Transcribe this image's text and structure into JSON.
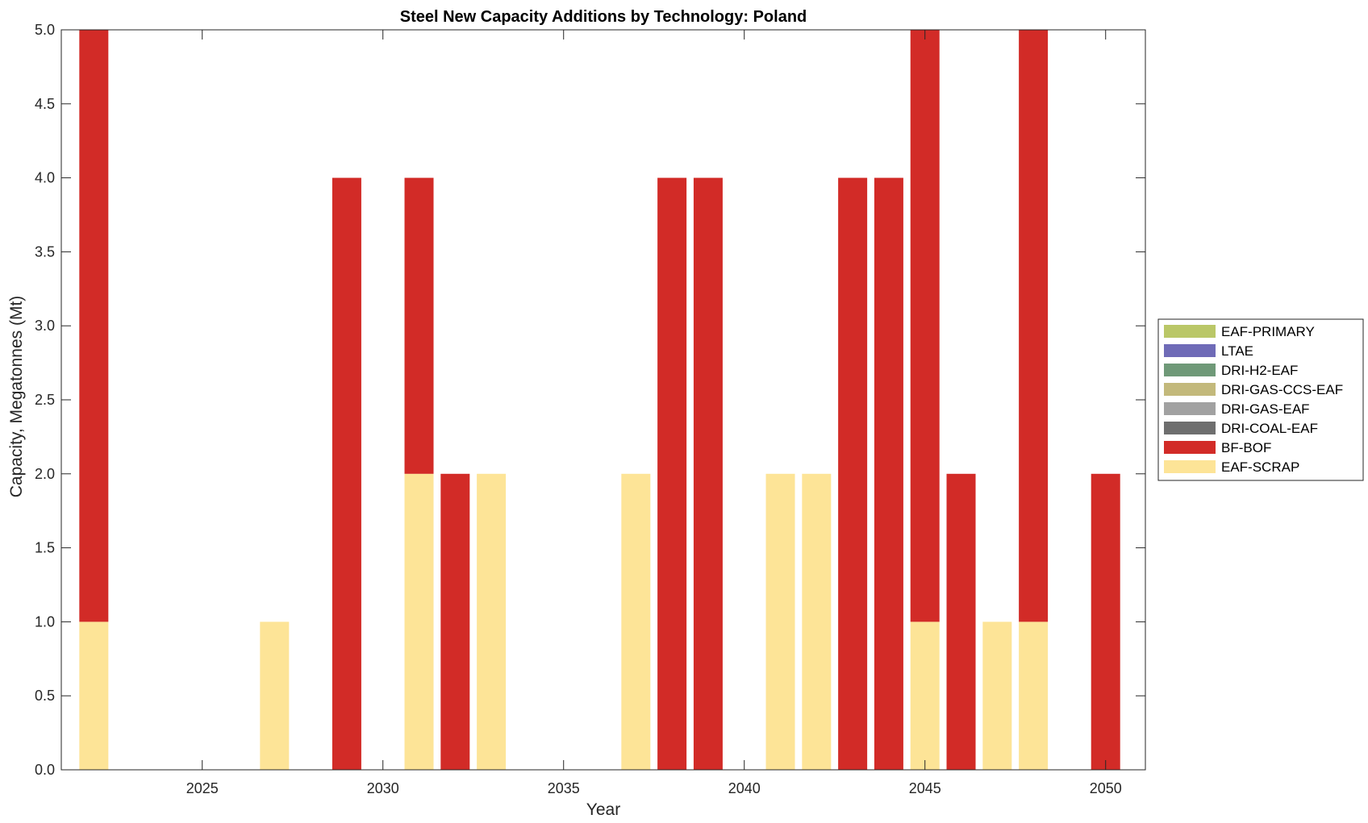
{
  "chart_data": {
    "type": "bar",
    "stacked": true,
    "title": "Steel New Capacity Additions by Technology: Poland",
    "xlabel": "Year",
    "ylabel": "Capacity, Megatonnes (Mt)",
    "xlim": [
      2021.1,
      2051.1
    ],
    "ylim": [
      0,
      5
    ],
    "xticks": [
      2025,
      2030,
      2035,
      2040,
      2045,
      2050
    ],
    "yticks": [
      "0.0",
      "0.5",
      "1.0",
      "1.5",
      "2.0",
      "2.5",
      "3.0",
      "3.5",
      "4.0",
      "4.5",
      "5.0"
    ],
    "legend_position": "outside-right",
    "categories": [
      2022,
      2023,
      2024,
      2025,
      2026,
      2027,
      2028,
      2029,
      2030,
      2031,
      2032,
      2033,
      2034,
      2035,
      2036,
      2037,
      2038,
      2039,
      2040,
      2041,
      2042,
      2043,
      2044,
      2045,
      2046,
      2047,
      2048,
      2049,
      2050
    ],
    "series": [
      {
        "name": "EAF-SCRAP",
        "color": "#FDE497",
        "values": [
          1,
          0,
          0,
          0,
          0,
          1,
          0,
          0,
          0,
          2,
          0,
          2,
          0,
          0,
          0,
          2,
          0,
          0,
          0,
          2,
          2,
          0,
          0,
          1,
          0,
          1,
          1,
          0,
          0
        ]
      },
      {
        "name": "BF-BOF",
        "color": "#D22B27",
        "values": [
          4,
          0,
          0,
          0,
          0,
          0,
          0,
          4,
          0,
          2,
          2,
          0,
          0,
          0,
          0,
          0,
          4,
          4,
          0,
          0,
          0,
          4,
          4,
          4,
          2,
          0,
          4,
          0,
          2
        ]
      },
      {
        "name": "DRI-COAL-EAF",
        "color": "#6E6E6E",
        "values": [
          0,
          0,
          0,
          0,
          0,
          0,
          0,
          0,
          0,
          0,
          0,
          0,
          0,
          0,
          0,
          0,
          0,
          0,
          0,
          0,
          0,
          0,
          0,
          0,
          0,
          0,
          0,
          0,
          0
        ]
      },
      {
        "name": "DRI-GAS-EAF",
        "color": "#A1A1A1",
        "values": [
          0,
          0,
          0,
          0,
          0,
          0,
          0,
          0,
          0,
          0,
          0,
          0,
          0,
          0,
          0,
          0,
          0,
          0,
          0,
          0,
          0,
          0,
          0,
          0,
          0,
          0,
          0,
          0,
          0
        ]
      },
      {
        "name": "DRI-GAS-CCS-EAF",
        "color": "#C3B97B",
        "values": [
          0,
          0,
          0,
          0,
          0,
          0,
          0,
          0,
          0,
          0,
          0,
          0,
          0,
          0,
          0,
          0,
          0,
          0,
          0,
          0,
          0,
          0,
          0,
          0,
          0,
          0,
          0,
          0,
          0
        ]
      },
      {
        "name": "DRI-H2-EAF",
        "color": "#6F9978",
        "values": [
          0,
          0,
          0,
          0,
          0,
          0,
          0,
          0,
          0,
          0,
          0,
          0,
          0,
          0,
          0,
          0,
          0,
          0,
          0,
          0,
          0,
          0,
          0,
          0,
          0,
          0,
          0,
          0,
          0
        ]
      },
      {
        "name": "LTAE",
        "color": "#6F6BB7",
        "values": [
          0,
          0,
          0,
          0,
          0,
          0,
          0,
          0,
          0,
          0,
          0,
          0,
          0,
          0,
          0,
          0,
          0,
          0,
          0,
          0,
          0,
          0,
          0,
          0,
          0,
          0,
          0,
          0,
          0
        ]
      },
      {
        "name": "EAF-PRIMARY",
        "color": "#BAC767",
        "values": [
          0,
          0,
          0,
          0,
          0,
          0,
          0,
          0,
          0,
          0,
          0,
          0,
          0,
          0,
          0,
          0,
          0,
          0,
          0,
          0,
          0,
          0,
          0,
          0,
          0,
          0,
          0,
          0,
          0
        ]
      }
    ],
    "legend_order": [
      "EAF-PRIMARY",
      "LTAE",
      "DRI-H2-EAF",
      "DRI-GAS-CCS-EAF",
      "DRI-GAS-EAF",
      "DRI-COAL-EAF",
      "BF-BOF",
      "EAF-SCRAP"
    ]
  }
}
